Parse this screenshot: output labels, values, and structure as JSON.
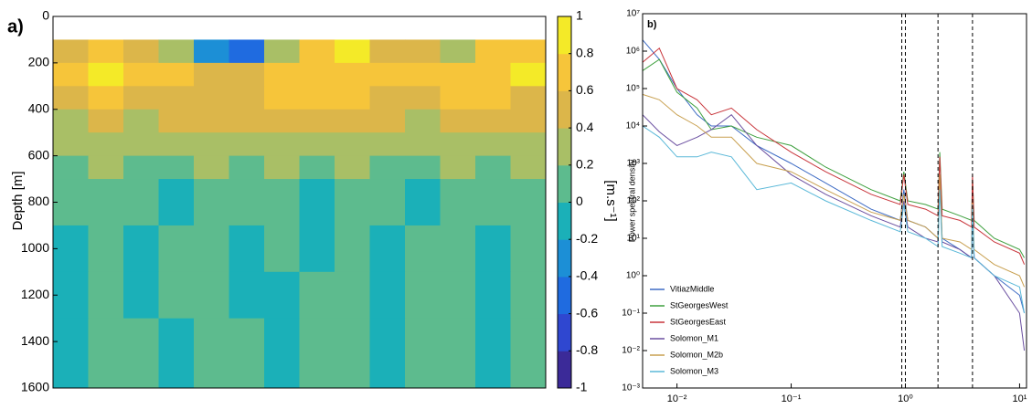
{
  "chart_data": [
    {
      "type": "heatmap",
      "panel_label": "a)",
      "ylabel": "Depth [m]",
      "colorbar_label": "[m.s⁻¹]",
      "ylim": [
        1600,
        0
      ],
      "yticks": [
        0,
        200,
        400,
        600,
        800,
        1000,
        1200,
        1400,
        1600
      ],
      "clim": [
        -1,
        1
      ],
      "cticks": [
        1,
        0.8,
        0.6,
        0.4,
        0.2,
        0,
        -0.2,
        -0.4,
        -0.6,
        -0.8,
        -1
      ],
      "colormap": [
        "#3b2a98",
        "#2f47d0",
        "#1f6be0",
        "#1c8fd6",
        "#1bb0b8",
        "#5dbb8e",
        "#a9bf66",
        "#dcb64a",
        "#f6c53a",
        "#f4ea28"
      ],
      "depth_edges": [
        100,
        200,
        300,
        400,
        500,
        600,
        700,
        900,
        1100,
        1300,
        1600
      ],
      "z": [
        [
          0.5,
          0.6,
          0.5,
          0.3,
          -0.3,
          -0.5,
          0.3,
          0.6,
          0.8,
          0.5,
          0.4,
          0.3,
          0.6,
          0.7
        ],
        [
          0.7,
          0.8,
          0.6,
          0.6,
          0.5,
          0.4,
          0.6,
          0.7,
          0.7,
          0.6,
          0.6,
          0.7,
          0.7,
          0.8
        ],
        [
          0.5,
          0.6,
          0.5,
          0.5,
          0.5,
          0.5,
          0.6,
          0.6,
          0.6,
          0.5,
          0.5,
          0.6,
          0.6,
          0.5
        ],
        [
          0.3,
          0.4,
          0.3,
          0.4,
          0.4,
          0.4,
          0.4,
          0.4,
          0.5,
          0.4,
          0.3,
          0.4,
          0.4,
          0.4
        ],
        [
          0.2,
          0.3,
          0.2,
          0.3,
          0.3,
          0.3,
          0.3,
          0.3,
          0.3,
          0.3,
          0.2,
          0.3,
          0.3,
          0.3
        ],
        [
          0.1,
          0.2,
          0.1,
          0.1,
          0.2,
          0.1,
          0.2,
          0.1,
          0.2,
          0.1,
          0.1,
          0.2,
          0.1,
          0.2
        ],
        [
          0,
          0.1,
          0,
          -0.1,
          0.1,
          0,
          0.1,
          -0.1,
          0.1,
          0,
          -0.1,
          0.1,
          0,
          0.1
        ],
        [
          -0.1,
          0.1,
          -0.1,
          0,
          0.1,
          -0.1,
          0,
          -0.1,
          0.1,
          -0.1,
          0,
          0.1,
          -0.1,
          0
        ],
        [
          -0.1,
          0.1,
          -0.1,
          0,
          0.1,
          -0.1,
          -0.1,
          0,
          0.1,
          -0.1,
          0,
          0.1,
          -0.1,
          0.1
        ],
        [
          -0.1,
          0.1,
          0,
          -0.1,
          0.1,
          0,
          -0.1,
          0.1,
          0,
          -0.1,
          0.1,
          0,
          -0.1,
          0.1
        ]
      ]
    },
    {
      "type": "line",
      "panel_label": "b)",
      "ylabel": "Power spectral density",
      "log_x": true,
      "log_y": true,
      "xlim": [
        0.005,
        11.5
      ],
      "xticks": [
        {
          "value": 0.01,
          "label": "10⁻²"
        },
        {
          "value": 0.1,
          "label": "10⁻¹"
        },
        {
          "value": 1,
          "label": "10⁰"
        },
        {
          "value": 10,
          "label": "10¹"
        }
      ],
      "ylim": [
        0.001,
        10000000
      ],
      "yticks": [
        {
          "value": 0.001,
          "label": "10⁻³"
        },
        {
          "value": 0.01,
          "label": "10⁻²"
        },
        {
          "value": 0.1,
          "label": "10⁻¹"
        },
        {
          "value": 1,
          "label": "10⁰"
        },
        {
          "value": 10,
          "label": "10¹"
        },
        {
          "value": 100,
          "label": "10²"
        },
        {
          "value": 1000,
          "label": "10³"
        },
        {
          "value": 10000,
          "label": "10⁴"
        },
        {
          "value": 100000,
          "label": "10⁵"
        },
        {
          "value": 1000000,
          "label": "10⁶"
        },
        {
          "value": 10000000,
          "label": "10⁷"
        }
      ],
      "vlines": [
        0.93,
        1.0,
        1.93,
        3.87
      ],
      "legend": "lower-left",
      "x": [
        0.005,
        0.007,
        0.01,
        0.015,
        0.02,
        0.03,
        0.05,
        0.1,
        0.2,
        0.5,
        0.9,
        0.97,
        1.05,
        1.5,
        1.93,
        2.0,
        2.1,
        3,
        3.8,
        3.87,
        4,
        6,
        10,
        11
      ],
      "series": [
        {
          "name": "VitiazMiddle",
          "color": "#3d6bc4",
          "values": [
            2000000,
            600000,
            100000,
            20000,
            10000,
            10000,
            3000,
            1000,
            300,
            60,
            30,
            200,
            30,
            20,
            10,
            500,
            10,
            5,
            3,
            80,
            3,
            1,
            0.3,
            0.1
          ]
        },
        {
          "name": "StGeorgesWest",
          "color": "#3fa03f",
          "values": [
            300000,
            600000,
            80000,
            30000,
            8000,
            10000,
            5000,
            3000,
            800,
            200,
            100,
            600,
            100,
            80,
            60,
            2000,
            60,
            40,
            30,
            400,
            30,
            10,
            5,
            3
          ]
        },
        {
          "name": "StGeorgesEast",
          "color": "#c8343a",
          "values": [
            500000,
            1200000,
            100000,
            50000,
            20000,
            30000,
            8000,
            2000,
            600,
            150,
            80,
            500,
            80,
            60,
            40,
            1500,
            40,
            30,
            20,
            500,
            20,
            8,
            4,
            2
          ]
        },
        {
          "name": "Solomon_M1",
          "color": "#6a4fa0",
          "values": [
            20000,
            7000,
            3000,
            5000,
            8000,
            20000,
            3000,
            500,
            150,
            40,
            20,
            100,
            20,
            10,
            8,
            300,
            8,
            5,
            3,
            80,
            3,
            1,
            0.1,
            0.01
          ]
        },
        {
          "name": "Solomon_M2b",
          "color": "#c8a050",
          "values": [
            70000,
            50000,
            20000,
            10000,
            5000,
            5000,
            1000,
            600,
            200,
            50,
            30,
            150,
            30,
            20,
            10,
            500,
            10,
            8,
            5,
            100,
            5,
            2,
            1,
            0.5
          ]
        },
        {
          "name": "Solomon_M3",
          "color": "#5ab8d8",
          "values": [
            10000,
            5000,
            1500,
            1500,
            2000,
            1500,
            200,
            300,
            100,
            30,
            15,
            80,
            15,
            10,
            6,
            200,
            6,
            4,
            3,
            80,
            3,
            1,
            0.5,
            0.1
          ]
        }
      ]
    }
  ]
}
